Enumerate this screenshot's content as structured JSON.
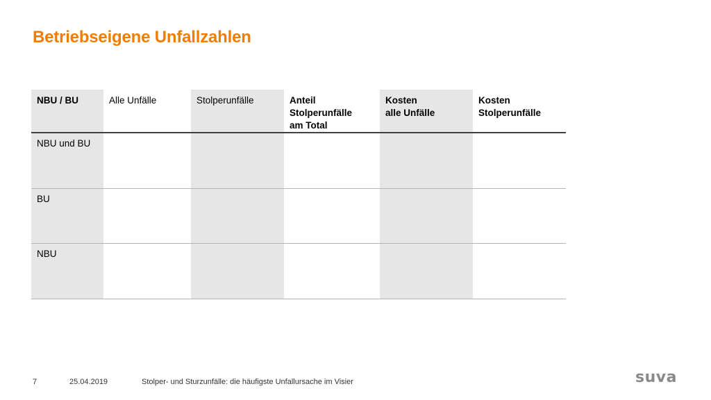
{
  "title": "Betriebseigene Unfallzahlen",
  "table": {
    "headers": [
      "NBU / BU",
      "Alle Unfälle",
      "Stolperunfälle",
      "Anteil\nStolperunfälle\nam Total",
      "Kosten\nalle Unfälle",
      "Kosten\nStolperunfälle"
    ],
    "rows": [
      {
        "label": "NBU und BU",
        "cells": [
          "",
          "",
          "",
          "",
          ""
        ]
      },
      {
        "label": "BU",
        "cells": [
          "",
          "",
          "",
          "",
          ""
        ]
      },
      {
        "label": "NBU",
        "cells": [
          "",
          "",
          "",
          "",
          ""
        ]
      }
    ]
  },
  "footer": {
    "page_number": "7",
    "date": "25.04.2019",
    "text": "Stolper- und Sturzunfälle: die häufigste Unfallursache im Visier"
  },
  "logo": {
    "text": "suva"
  },
  "colors": {
    "accent": "#f07d00",
    "column_shade": "#e6e6e6",
    "header_rule": "#404040",
    "row_rule": "#b5b5b5",
    "logo": "#8a8a8a"
  }
}
